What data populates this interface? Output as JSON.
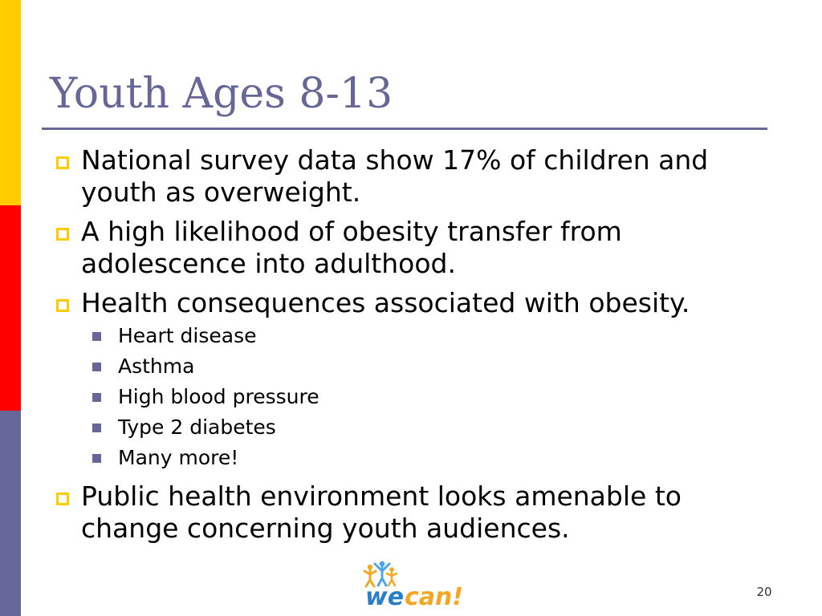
{
  "slide": {
    "title": "Youth Ages 8-13",
    "bullets": [
      {
        "text": "National survey data show 17% of children and youth as overweight."
      },
      {
        "text": "A high likelihood of obesity transfer from adolescence into adulthood."
      },
      {
        "text": "Health consequences associated with obesity.",
        "sub": [
          "Heart disease",
          "Asthma",
          "High blood pressure",
          "Type 2 diabetes",
          "Many more!"
        ]
      },
      {
        "text": "Public health environment looks amenable to change concerning youth audiences."
      }
    ],
    "logo_text_we": "we",
    "logo_text_can": "can!",
    "page_number": "20"
  },
  "colors": {
    "accent_bar_yellow": "#ffcc00",
    "accent_bar_red": "#ff0000",
    "accent_bar_blue": "#666699",
    "title": "#666699",
    "logo_blue": "#2a7fc4",
    "logo_orange": "#f5a623"
  }
}
